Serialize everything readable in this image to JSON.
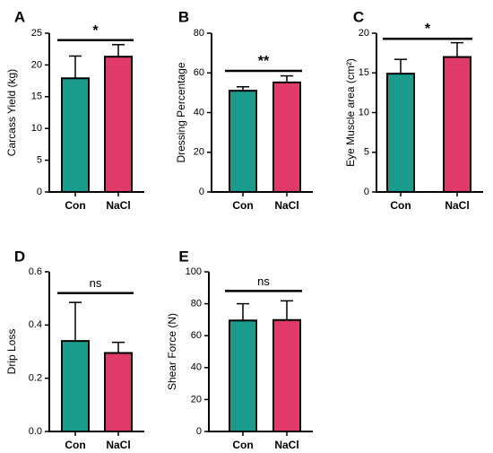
{
  "colors": {
    "con": "#1a9c8c",
    "nacl": "#e03a6a",
    "axis": "#000000"
  },
  "chart_data": [
    {
      "type": "bar",
      "panel": "A",
      "ylabel": "Carcass Yield (kg)",
      "categories": [
        "Con",
        "NaCl"
      ],
      "values": [
        17.9,
        21.3
      ],
      "errors": [
        3.5,
        1.9
      ],
      "ylim": [
        0,
        25
      ],
      "yticks": [
        "0",
        "5",
        "10",
        "15",
        "20",
        "25"
      ],
      "ytick_values": [
        0,
        5,
        10,
        15,
        20,
        25
      ],
      "significance": "*",
      "sig_level": 23.9
    },
    {
      "type": "bar",
      "panel": "B",
      "ylabel": "Dressing Percentage",
      "categories": [
        "Con",
        "NaCl"
      ],
      "values": [
        51.0,
        55.2
      ],
      "errors": [
        2.0,
        3.3
      ],
      "ylim": [
        0,
        80
      ],
      "yticks": [
        "0",
        "20",
        "40",
        "60",
        "80"
      ],
      "ytick_values": [
        0,
        20,
        40,
        60,
        80
      ],
      "significance": "**",
      "sig_level": 61.0
    },
    {
      "type": "bar",
      "panel": "C",
      "ylabel": "Eye Muscle area (cm²)",
      "categories": [
        "Con",
        "NaCl"
      ],
      "values": [
        14.9,
        17.0
      ],
      "errors": [
        1.8,
        1.8
      ],
      "ylim": [
        0,
        20
      ],
      "yticks": [
        "0",
        "5",
        "10",
        "15",
        "20"
      ],
      "ytick_values": [
        0,
        5,
        10,
        15,
        20
      ],
      "significance": "*",
      "sig_level": 19.3
    },
    {
      "type": "bar",
      "panel": "D",
      "ylabel": "Drip Loss",
      "categories": [
        "Con",
        "NaCl"
      ],
      "values": [
        0.34,
        0.295
      ],
      "errors": [
        0.145,
        0.04
      ],
      "ylim": [
        0,
        0.6
      ],
      "yticks": [
        "0.0",
        "0.2",
        "0.4",
        "0.6"
      ],
      "ytick_values": [
        0,
        0.2,
        0.4,
        0.6
      ],
      "significance": "ns",
      "sig_level": 0.52
    },
    {
      "type": "bar",
      "panel": "E",
      "ylabel": "Shear Force (N)",
      "categories": [
        "Con",
        "NaCl"
      ],
      "values": [
        69.5,
        69.8
      ],
      "errors": [
        10.5,
        12.0
      ],
      "ylim": [
        0,
        100
      ],
      "yticks": [
        "0",
        "20",
        "40",
        "60",
        "80",
        "100"
      ],
      "ytick_values": [
        0,
        20,
        40,
        60,
        80,
        100
      ],
      "significance": "ns",
      "sig_level": 88.0
    }
  ]
}
